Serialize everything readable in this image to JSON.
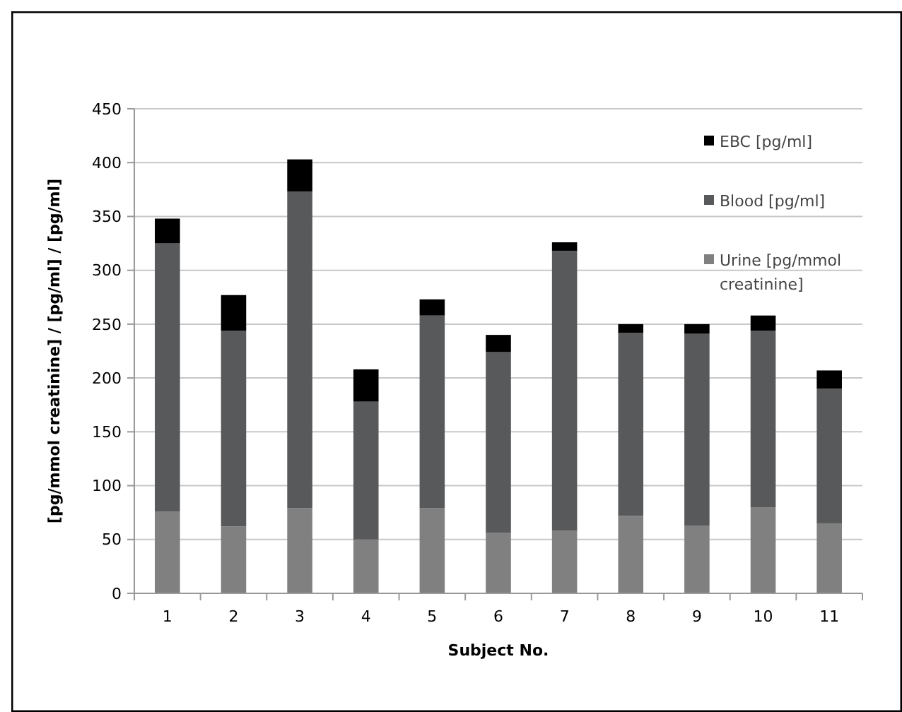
{
  "chart_data": {
    "type": "bar",
    "stacked": true,
    "xlabel": "Subject No.",
    "ylabel": "[pg/mmol creatinine] / [pg/ml] / [pg/ml]",
    "categories": [
      "1",
      "2",
      "3",
      "4",
      "5",
      "6",
      "7",
      "8",
      "9",
      "10",
      "11"
    ],
    "series": [
      {
        "name": "Urine [pg/mmol creatinine]",
        "color": "#808080",
        "values": [
          76,
          62,
          79,
          50,
          79,
          56,
          58,
          72,
          63,
          80,
          65
        ]
      },
      {
        "name": "Blood [pg/ml]",
        "color": "#58595b",
        "values": [
          249,
          182,
          294,
          128,
          179,
          168,
          260,
          170,
          178,
          164,
          125
        ]
      },
      {
        "name": "EBC [pg/ml]",
        "color": "#000000",
        "values": [
          23,
          33,
          30,
          30,
          15,
          16,
          8,
          8,
          9,
          14,
          17
        ]
      }
    ],
    "ylim": [
      0,
      450
    ],
    "yticks": [
      0,
      50,
      100,
      150,
      200,
      250,
      300,
      350,
      400,
      450
    ],
    "grid": "y",
    "legend": "top right"
  }
}
